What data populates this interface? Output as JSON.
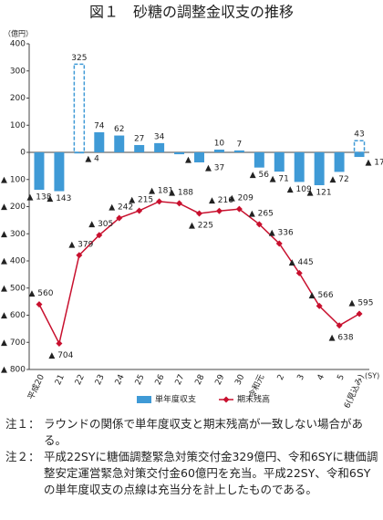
{
  "chart_data": {
    "type": "bar_line",
    "title": "図１　砂糖の調整金収支の推移",
    "y_unit": "（億円）",
    "x_unit": "(SY)",
    "categories": [
      "平成20",
      "21",
      "22",
      "23",
      "24",
      "25",
      "26",
      "27",
      "28",
      "29",
      "30",
      "令和元",
      "2",
      "3",
      "4",
      "5",
      "6(見込み)"
    ],
    "ylim": [
      -800,
      400
    ],
    "yticks": [
      400,
      300,
      200,
      100,
      0,
      {
        "value": -100,
        "label": "▲ 100"
      },
      {
        "value": -200,
        "label": "▲ 200"
      },
      {
        "value": -300,
        "label": "▲ 300"
      },
      {
        "value": -400,
        "label": "▲ 400"
      },
      {
        "value": -500,
        "label": "▲ 500"
      },
      {
        "value": -600,
        "label": "▲ 600"
      },
      {
        "value": -700,
        "label": "▲ 700"
      },
      {
        "value": -800,
        "label": "▲ 800"
      }
    ],
    "grid": false,
    "series": [
      {
        "name": "単年度収支",
        "kind": "bar",
        "color": "#3f9ad6",
        "values": [
          -138,
          -143,
          -4,
          74,
          62,
          27,
          34,
          -7,
          -37,
          10,
          7,
          -56,
          -71,
          -109,
          -121,
          -72,
          -17
        ],
        "value_labels": [
          "▲ 138",
          "▲ 143",
          "▲ 4",
          "74",
          "62",
          "27",
          "34",
          "▲ 7",
          "▲ 37",
          "10",
          "7",
          "▲ 56",
          "▲ 71",
          "▲ 109",
          "▲ 121",
          "▲ 72",
          "▲ 17"
        ],
        "dashed_values": [
          null,
          null,
          325,
          null,
          null,
          null,
          null,
          null,
          null,
          null,
          null,
          null,
          null,
          null,
          null,
          null,
          43
        ]
      },
      {
        "name": "期末残高",
        "kind": "line",
        "color": "#c8102e",
        "values": [
          -560,
          -704,
          -379,
          -305,
          -242,
          -215,
          -181,
          -188,
          -225,
          -216,
          -209,
          -265,
          -336,
          -445,
          -566,
          -638,
          -595
        ],
        "value_labels": [
          "▲ 560",
          "▲ 704",
          "▲ 379",
          "▲ 305",
          "▲ 242",
          "▲ 215",
          "▲ 181",
          "▲ 188",
          "▲ 225",
          "▲ 216",
          "▲ 209",
          "▲ 265",
          "▲ 336",
          "▲ 445",
          "▲ 566",
          "▲ 638",
          "▲ 595"
        ]
      }
    ],
    "notes": [
      {
        "label": "注１：",
        "text": "ラウンドの関係で単年度収支と期末残高が一致しない場合がある。"
      },
      {
        "label": "注２：",
        "text": "平成22SYに糖価調整緊急対策交付金329億円、令和6SYに糖価調整安定運営緊急対策交付金60億円を充当。平成22SY、令和6SYの単年度収支の点線は充当分を計上したものである。"
      }
    ]
  }
}
